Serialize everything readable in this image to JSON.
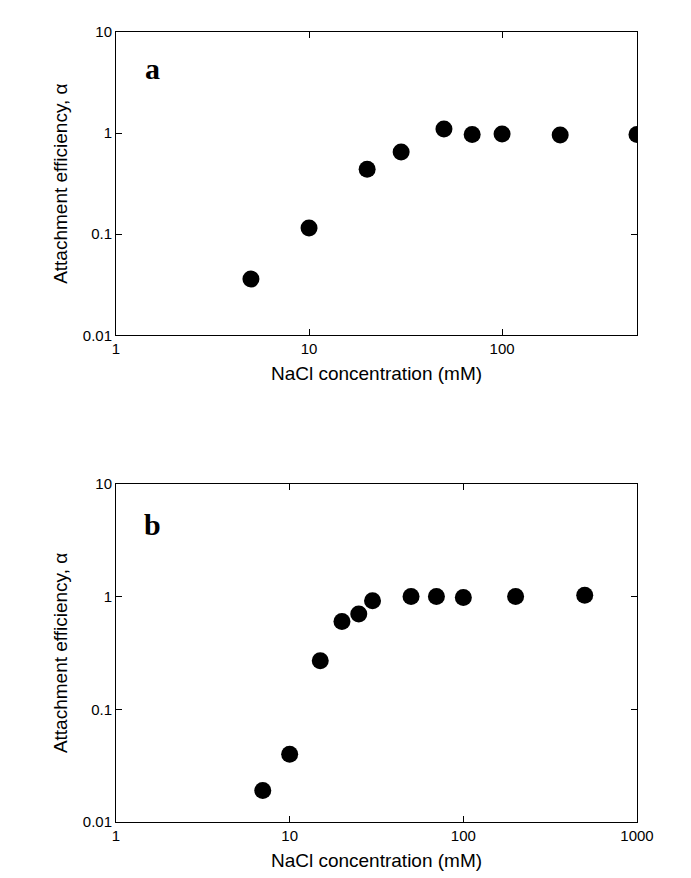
{
  "chart_data": [
    {
      "type": "scatter",
      "annotation": "a",
      "x_label": "NaCl concentration (mM)",
      "y_label": "Attachment efficiency, α",
      "x": [
        5,
        10,
        20,
        30,
        50,
        70,
        100,
        200,
        500
      ],
      "values": [
        0.036,
        0.115,
        0.44,
        0.65,
        1.1,
        0.97,
        0.98,
        0.96,
        0.97
      ],
      "xlim": [
        1,
        500
      ],
      "ylim": [
        0.01,
        10
      ],
      "xticks": [
        1,
        10,
        100
      ],
      "yticks": [
        0.01,
        0.1,
        1,
        10
      ],
      "log": true,
      "grid": false,
      "marker": "circle",
      "color": "#000000"
    },
    {
      "type": "scatter",
      "annotation": "b",
      "x_label": "NaCl concentration (mM)",
      "y_label": "Attachment efficiency, α",
      "x": [
        7,
        10,
        15,
        20,
        25,
        30,
        50,
        70,
        100,
        200,
        500
      ],
      "values": [
        0.019,
        0.04,
        0.27,
        0.6,
        0.7,
        0.92,
        1.0,
        1.0,
        0.98,
        1.0,
        1.03
      ],
      "xlim": [
        1,
        1000
      ],
      "ylim": [
        0.01,
        10
      ],
      "xticks": [
        1,
        10,
        100,
        1000
      ],
      "yticks": [
        0.01,
        0.1,
        1,
        10
      ],
      "log": true,
      "grid": false,
      "marker": "circle",
      "color": "#000000"
    }
  ]
}
